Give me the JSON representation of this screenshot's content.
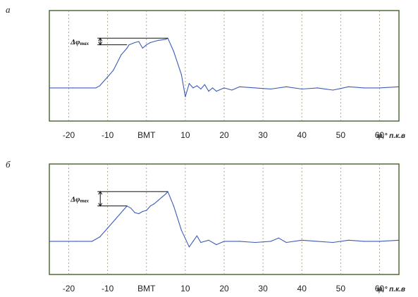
{
  "chart_data": [
    {
      "type": "line",
      "panel_label": "а",
      "xlabel_symbol": "φ",
      "xlabel_unit": ",° п.к.в",
      "xlim": [
        -25,
        65
      ],
      "ylim": [
        0,
        1
      ],
      "grid": "vertical dashed",
      "xticks": [
        {
          "value": -20,
          "label": "-20"
        },
        {
          "value": -10,
          "label": "-10"
        },
        {
          "value": 0,
          "label": "ВМТ"
        },
        {
          "value": 10,
          "label": "10"
        },
        {
          "value": 20,
          "label": "20"
        },
        {
          "value": 30,
          "label": "30"
        },
        {
          "value": 40,
          "label": "40"
        },
        {
          "value": 50,
          "label": "50"
        },
        {
          "value": 60,
          "label": "60"
        }
      ],
      "annotation": {
        "symbol": "Δφ",
        "subscript": "max",
        "x": -5,
        "y_low": 0.69,
        "y_high": 0.75
      },
      "x": [
        -25,
        -19,
        -13,
        -12,
        -10,
        -8.5,
        -6.5,
        -5,
        -4.5,
        -3,
        -2,
        -1,
        0,
        1,
        3,
        5,
        5.5,
        7,
        9,
        10,
        11,
        12,
        13,
        14,
        15,
        16,
        17,
        18,
        20,
        22,
        24,
        28,
        32,
        36,
        40,
        44,
        48,
        52,
        56,
        60,
        65
      ],
      "y": [
        0.3,
        0.3,
        0.3,
        0.32,
        0.4,
        0.46,
        0.6,
        0.66,
        0.69,
        0.71,
        0.72,
        0.66,
        0.69,
        0.71,
        0.73,
        0.74,
        0.75,
        0.63,
        0.42,
        0.22,
        0.34,
        0.3,
        0.32,
        0.29,
        0.33,
        0.27,
        0.3,
        0.27,
        0.3,
        0.28,
        0.31,
        0.3,
        0.29,
        0.31,
        0.29,
        0.3,
        0.28,
        0.31,
        0.3,
        0.3,
        0.31
      ]
    },
    {
      "type": "line",
      "panel_label": "б",
      "xlabel_symbol": "φ",
      "xlabel_unit": ",° п.к.в",
      "xlim": [
        -25,
        65
      ],
      "ylim": [
        0,
        1
      ],
      "grid": "vertical dashed",
      "xticks": [
        {
          "value": -20,
          "label": "-20"
        },
        {
          "value": -10,
          "label": "-10"
        },
        {
          "value": 0,
          "label": "ВМТ"
        },
        {
          "value": 10,
          "label": "10"
        },
        {
          "value": 20,
          "label": "20"
        },
        {
          "value": 30,
          "label": "30"
        },
        {
          "value": 40,
          "label": "40"
        },
        {
          "value": 50,
          "label": "50"
        },
        {
          "value": 60,
          "label": "60"
        }
      ],
      "annotation": {
        "symbol": "Δφ",
        "subscript": "max",
        "x": -5,
        "y_low": 0.62,
        "y_high": 0.75
      },
      "x": [
        -25,
        -18,
        -14,
        -12,
        -10,
        -8,
        -6,
        -5,
        -4,
        -3,
        -2,
        -1,
        0,
        1,
        2,
        3,
        4,
        5,
        5.5,
        7,
        9,
        11,
        12,
        13,
        14,
        16,
        18,
        20,
        24,
        28,
        32,
        34,
        36,
        40,
        44,
        48,
        52,
        56,
        60,
        65
      ],
      "y": [
        0.3,
        0.3,
        0.3,
        0.34,
        0.42,
        0.5,
        0.58,
        0.62,
        0.6,
        0.56,
        0.55,
        0.57,
        0.58,
        0.62,
        0.64,
        0.67,
        0.7,
        0.73,
        0.75,
        0.62,
        0.4,
        0.25,
        0.3,
        0.35,
        0.29,
        0.31,
        0.27,
        0.3,
        0.3,
        0.29,
        0.3,
        0.33,
        0.29,
        0.31,
        0.3,
        0.29,
        0.31,
        0.3,
        0.3,
        0.31
      ]
    }
  ]
}
